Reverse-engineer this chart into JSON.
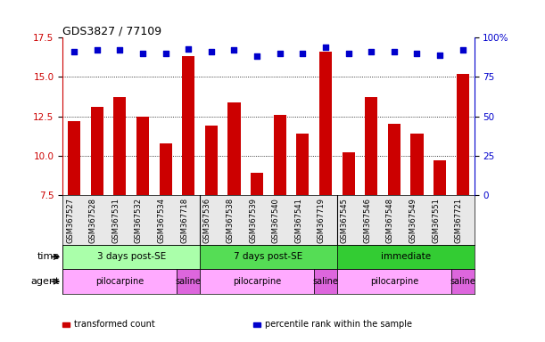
{
  "title": "GDS3827 / 77109",
  "samples": [
    "GSM367527",
    "GSM367528",
    "GSM367531",
    "GSM367532",
    "GSM367534",
    "GSM367718",
    "GSM367536",
    "GSM367538",
    "GSM367539",
    "GSM367540",
    "GSM367541",
    "GSM367719",
    "GSM367545",
    "GSM367546",
    "GSM367548",
    "GSM367549",
    "GSM367551",
    "GSM367721"
  ],
  "bar_values": [
    12.2,
    13.1,
    13.7,
    12.5,
    10.8,
    16.3,
    11.9,
    13.4,
    8.9,
    12.6,
    11.4,
    16.6,
    10.2,
    13.7,
    12.0,
    11.4,
    9.7,
    15.2
  ],
  "percentile_values": [
    16.6,
    16.7,
    16.7,
    16.5,
    16.5,
    16.8,
    16.6,
    16.7,
    16.3,
    16.5,
    16.5,
    16.9,
    16.5,
    16.6,
    16.6,
    16.5,
    16.4,
    16.7
  ],
  "bar_color": "#cc0000",
  "percentile_color": "#0000cc",
  "ylim": [
    7.5,
    17.5
  ],
  "y_ticks_left": [
    7.5,
    10.0,
    12.5,
    15.0,
    17.5
  ],
  "y_ticks_right": [
    0,
    25,
    50,
    75,
    100
  ],
  "dotted_lines": [
    10.0,
    12.5,
    15.0
  ],
  "time_groups": [
    {
      "label": "3 days post-SE",
      "start": 0,
      "end": 6,
      "color": "#aaffaa"
    },
    {
      "label": "7 days post-SE",
      "start": 6,
      "end": 12,
      "color": "#55dd55"
    },
    {
      "label": "immediate",
      "start": 12,
      "end": 18,
      "color": "#33cc33"
    }
  ],
  "agent_groups": [
    {
      "label": "pilocarpine",
      "start": 0,
      "end": 5,
      "color": "#ffaaff"
    },
    {
      "label": "saline",
      "start": 5,
      "end": 6,
      "color": "#dd66dd"
    },
    {
      "label": "pilocarpine",
      "start": 6,
      "end": 11,
      "color": "#ffaaff"
    },
    {
      "label": "saline",
      "start": 11,
      "end": 12,
      "color": "#dd66dd"
    },
    {
      "label": "pilocarpine",
      "start": 12,
      "end": 17,
      "color": "#ffaaff"
    },
    {
      "label": "saline",
      "start": 17,
      "end": 18,
      "color": "#dd66dd"
    }
  ],
  "legend_items": [
    {
      "label": "transformed count",
      "color": "#cc0000"
    },
    {
      "label": "percentile rank within the sample",
      "color": "#0000cc"
    }
  ],
  "time_label": "time",
  "agent_label": "agent",
  "bg_color": "#ffffff",
  "group_separators": [
    6,
    12
  ]
}
